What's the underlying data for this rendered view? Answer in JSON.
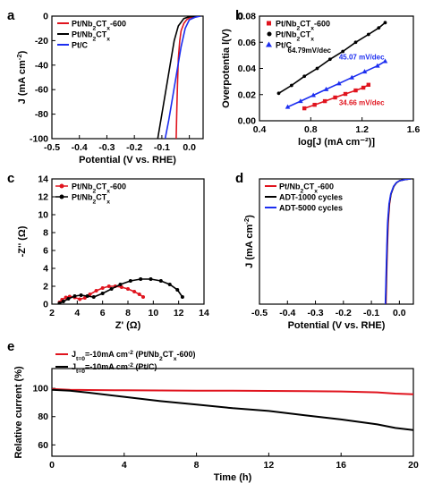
{
  "chart_data": [
    {
      "id": "a",
      "type": "line",
      "panel_label": "a",
      "xlabel": "Potential (V vs. RHE)",
      "ylabel": "J (mA cm⁻²)",
      "xlim": [
        -0.5,
        0.05
      ],
      "ylim": [
        -100,
        0
      ],
      "xticks": [
        "-0.5",
        "-0.4",
        "-0.3",
        "-0.2",
        "-0.1",
        "0.0"
      ],
      "yticks": [
        "0",
        "-20",
        "-40",
        "-60",
        "-80",
        "-100"
      ],
      "legend": "top-left",
      "series": [
        {
          "name": "Pt/Nb₂CTₓ-600",
          "color": "#e0141e",
          "x": [
            0.04,
            0.02,
            0.0,
            -0.01,
            -0.02,
            -0.03,
            -0.035,
            -0.04,
            -0.043,
            -0.046,
            -0.048
          ],
          "y": [
            0,
            -0.5,
            -1.5,
            -3,
            -6,
            -12,
            -20,
            -35,
            -55,
            -80,
            -100
          ]
        },
        {
          "name": "Pt/Nb₂CTₓ",
          "color": "#000000",
          "x": [
            0.04,
            0.0,
            -0.02,
            -0.04,
            -0.055,
            -0.07,
            -0.085,
            -0.1,
            -0.115
          ],
          "y": [
            0,
            -0.5,
            -2,
            -8,
            -20,
            -40,
            -60,
            -80,
            -100
          ]
        },
        {
          "name": "Pt/C",
          "color": "#1c2ef0",
          "x": [
            0.04,
            0.02,
            0.0,
            -0.015,
            -0.03,
            -0.045,
            -0.06,
            -0.075,
            -0.088
          ],
          "y": [
            0,
            -1,
            -3,
            -10,
            -25,
            -45,
            -65,
            -85,
            -100
          ]
        }
      ]
    },
    {
      "id": "b",
      "type": "scatter",
      "panel_label": "b",
      "xlabel": "log[J (mA cm⁻²)]",
      "ylabel": "Overpotentia l(V)",
      "xlim": [
        0.4,
        1.6
      ],
      "ylim": [
        0,
        0.08
      ],
      "xticks": [
        "0.4",
        "0.8",
        "1.2",
        "1.6"
      ],
      "yticks": [
        "0.00",
        "0.02",
        "0.04",
        "0.06",
        "0.08"
      ],
      "legend": "top-left",
      "annotations": [
        {
          "text": "64.79mV/dec",
          "color": "#000000",
          "x": 0.62,
          "y": 0.052
        },
        {
          "text": "45.07 mV/dec",
          "color": "#1c2ef0",
          "x": 1.02,
          "y": 0.047
        },
        {
          "text": "34.66 mV/dec",
          "color": "#e0141e",
          "x": 1.02,
          "y": 0.012
        }
      ],
      "series": [
        {
          "name": "Pt/Nb₂CTₓ-600",
          "color": "#e0141e",
          "marker": "square",
          "x": [
            0.75,
            0.83,
            0.91,
            0.99,
            1.07,
            1.15,
            1.21,
            1.25
          ],
          "y": [
            0.0095,
            0.0122,
            0.015,
            0.0178,
            0.0205,
            0.0232,
            0.0253,
            0.0275
          ]
        },
        {
          "name": "Pt/Nb₂CTₓ",
          "color": "#000000",
          "marker": "circle",
          "x": [
            0.55,
            0.65,
            0.75,
            0.85,
            0.95,
            1.05,
            1.15,
            1.25,
            1.33,
            1.38
          ],
          "y": [
            0.021,
            0.027,
            0.034,
            0.04,
            0.047,
            0.053,
            0.06,
            0.066,
            0.071,
            0.075
          ]
        },
        {
          "name": "Pt/C",
          "color": "#1c2ef0",
          "marker": "triangle",
          "x": [
            0.62,
            0.72,
            0.82,
            0.92,
            1.02,
            1.12,
            1.22,
            1.32,
            1.38
          ],
          "y": [
            0.0105,
            0.015,
            0.0195,
            0.024,
            0.0285,
            0.033,
            0.0375,
            0.042,
            0.0455
          ]
        }
      ]
    },
    {
      "id": "c",
      "type": "scatter",
      "panel_label": "c",
      "xlabel": "Z' (Ω)",
      "ylabel": "-Z'' (Ω)",
      "xlim": [
        2,
        14
      ],
      "ylim": [
        0,
        14
      ],
      "xticks": [
        "2",
        "4",
        "6",
        "8",
        "10",
        "12",
        "14"
      ],
      "yticks": [
        "0",
        "2",
        "4",
        "6",
        "8",
        "10",
        "12",
        "14"
      ],
      "legend": "top-left",
      "series": [
        {
          "name": "Pt/Nb₂CTₓ-600",
          "color": "#e0141e",
          "marker": "circle",
          "x": [
            2.6,
            2.8,
            3.1,
            3.4,
            3.8,
            4.2,
            4.6,
            5.0,
            5.5,
            6.0,
            6.5,
            7.0,
            7.5,
            8.0,
            8.5,
            8.9,
            9.2
          ],
          "y": [
            0.2,
            0.5,
            0.75,
            0.85,
            0.75,
            0.55,
            0.7,
            1.1,
            1.5,
            1.8,
            2.0,
            2.0,
            1.9,
            1.7,
            1.4,
            1.1,
            0.8
          ]
        },
        {
          "name": "Pt/Nb₂CTₓ",
          "color": "#000000",
          "marker": "circle",
          "x": [
            2.6,
            2.9,
            3.3,
            3.8,
            4.3,
            4.8,
            5.3,
            6.0,
            6.7,
            7.4,
            8.2,
            9.0,
            9.8,
            10.6,
            11.3,
            11.9,
            12.3
          ],
          "y": [
            0.1,
            0.3,
            0.6,
            0.9,
            1.0,
            0.9,
            0.8,
            1.2,
            1.7,
            2.2,
            2.6,
            2.8,
            2.8,
            2.6,
            2.2,
            1.6,
            0.8
          ]
        }
      ]
    },
    {
      "id": "d",
      "type": "line",
      "panel_label": "d",
      "xlabel": "Potential (V vs. RHE)",
      "ylabel": "J (mA cm⁻²)",
      "xlim": [
        -0.5,
        0.05
      ],
      "ylim": [
        -100,
        0
      ],
      "xticks": [
        "-0.5",
        "-0.4",
        "-0.3",
        "-0.2",
        "-0.1",
        "0.0"
      ],
      "legend": "top-left",
      "series": [
        {
          "name": "Pt/Nb₂CTₓ-600",
          "color": "#e0141e",
          "x": [
            0.04,
            0.02,
            0.0,
            -0.01,
            -0.02,
            -0.03,
            -0.035,
            -0.04,
            -0.043,
            -0.046,
            -0.048
          ],
          "y": [
            0,
            -0.5,
            -1.5,
            -3,
            -6,
            -12,
            -20,
            -35,
            -55,
            -80,
            -100
          ]
        },
        {
          "name": "ADT-1000 cycles",
          "color": "#000000",
          "x": [
            0.04,
            0.02,
            0.0,
            -0.01,
            -0.02,
            -0.03,
            -0.036,
            -0.041,
            -0.044,
            -0.047,
            -0.049
          ],
          "y": [
            0,
            -0.5,
            -1.5,
            -3,
            -6,
            -12,
            -20,
            -35,
            -55,
            -80,
            -100
          ]
        },
        {
          "name": "ADT-5000 cycles",
          "color": "#1c2ef0",
          "x": [
            0.04,
            0.02,
            0.0,
            -0.011,
            -0.021,
            -0.031,
            -0.037,
            -0.042,
            -0.045,
            -0.048,
            -0.05
          ],
          "y": [
            0,
            -0.5,
            -1.5,
            -3,
            -6,
            -12,
            -20,
            -35,
            -55,
            -80,
            -100
          ]
        }
      ]
    },
    {
      "id": "e",
      "type": "line",
      "panel_label": "e",
      "xlabel": "Time (h)",
      "ylabel": "Relative current (%)",
      "xlim": [
        0,
        20
      ],
      "ylim": [
        52,
        114
      ],
      "xticks": [
        "0",
        "4",
        "8",
        "12",
        "16",
        "20"
      ],
      "yticks": [
        "60",
        "80",
        "100"
      ],
      "legend": "top-left",
      "legend_labels": [
        {
          "j": "J",
          "sub": "t=0",
          "rest": "=-10mA cm",
          "sup": "-2",
          "tail": " (Pt/Nb₂CTₓ-600)",
          "color": "#e0141e"
        },
        {
          "j": "J",
          "sub": "t=0",
          "rest": "=-10mA cm",
          "sup": "-2",
          "tail": " (Pt/C)",
          "color": "#000000"
        }
      ],
      "series": [
        {
          "name": "Pt/Nb₂CTₓ-600",
          "color": "#e0141e",
          "x": [
            0,
            1,
            2,
            4,
            6,
            8,
            10,
            12,
            14,
            16,
            18,
            19,
            20
          ],
          "y": [
            99.5,
            99,
            98.8,
            98.6,
            98.5,
            98.4,
            98.3,
            98.2,
            98.0,
            97.8,
            97.2,
            96.3,
            95.8
          ]
        },
        {
          "name": "Pt/C",
          "color": "#000000",
          "x": [
            0,
            1,
            2,
            4,
            6,
            8,
            10,
            12,
            14,
            16,
            18,
            19,
            20
          ],
          "y": [
            99,
            98.3,
            97,
            94,
            91,
            88.5,
            86,
            84,
            81,
            78,
            74.5,
            72,
            70.5
          ]
        }
      ]
    }
  ]
}
